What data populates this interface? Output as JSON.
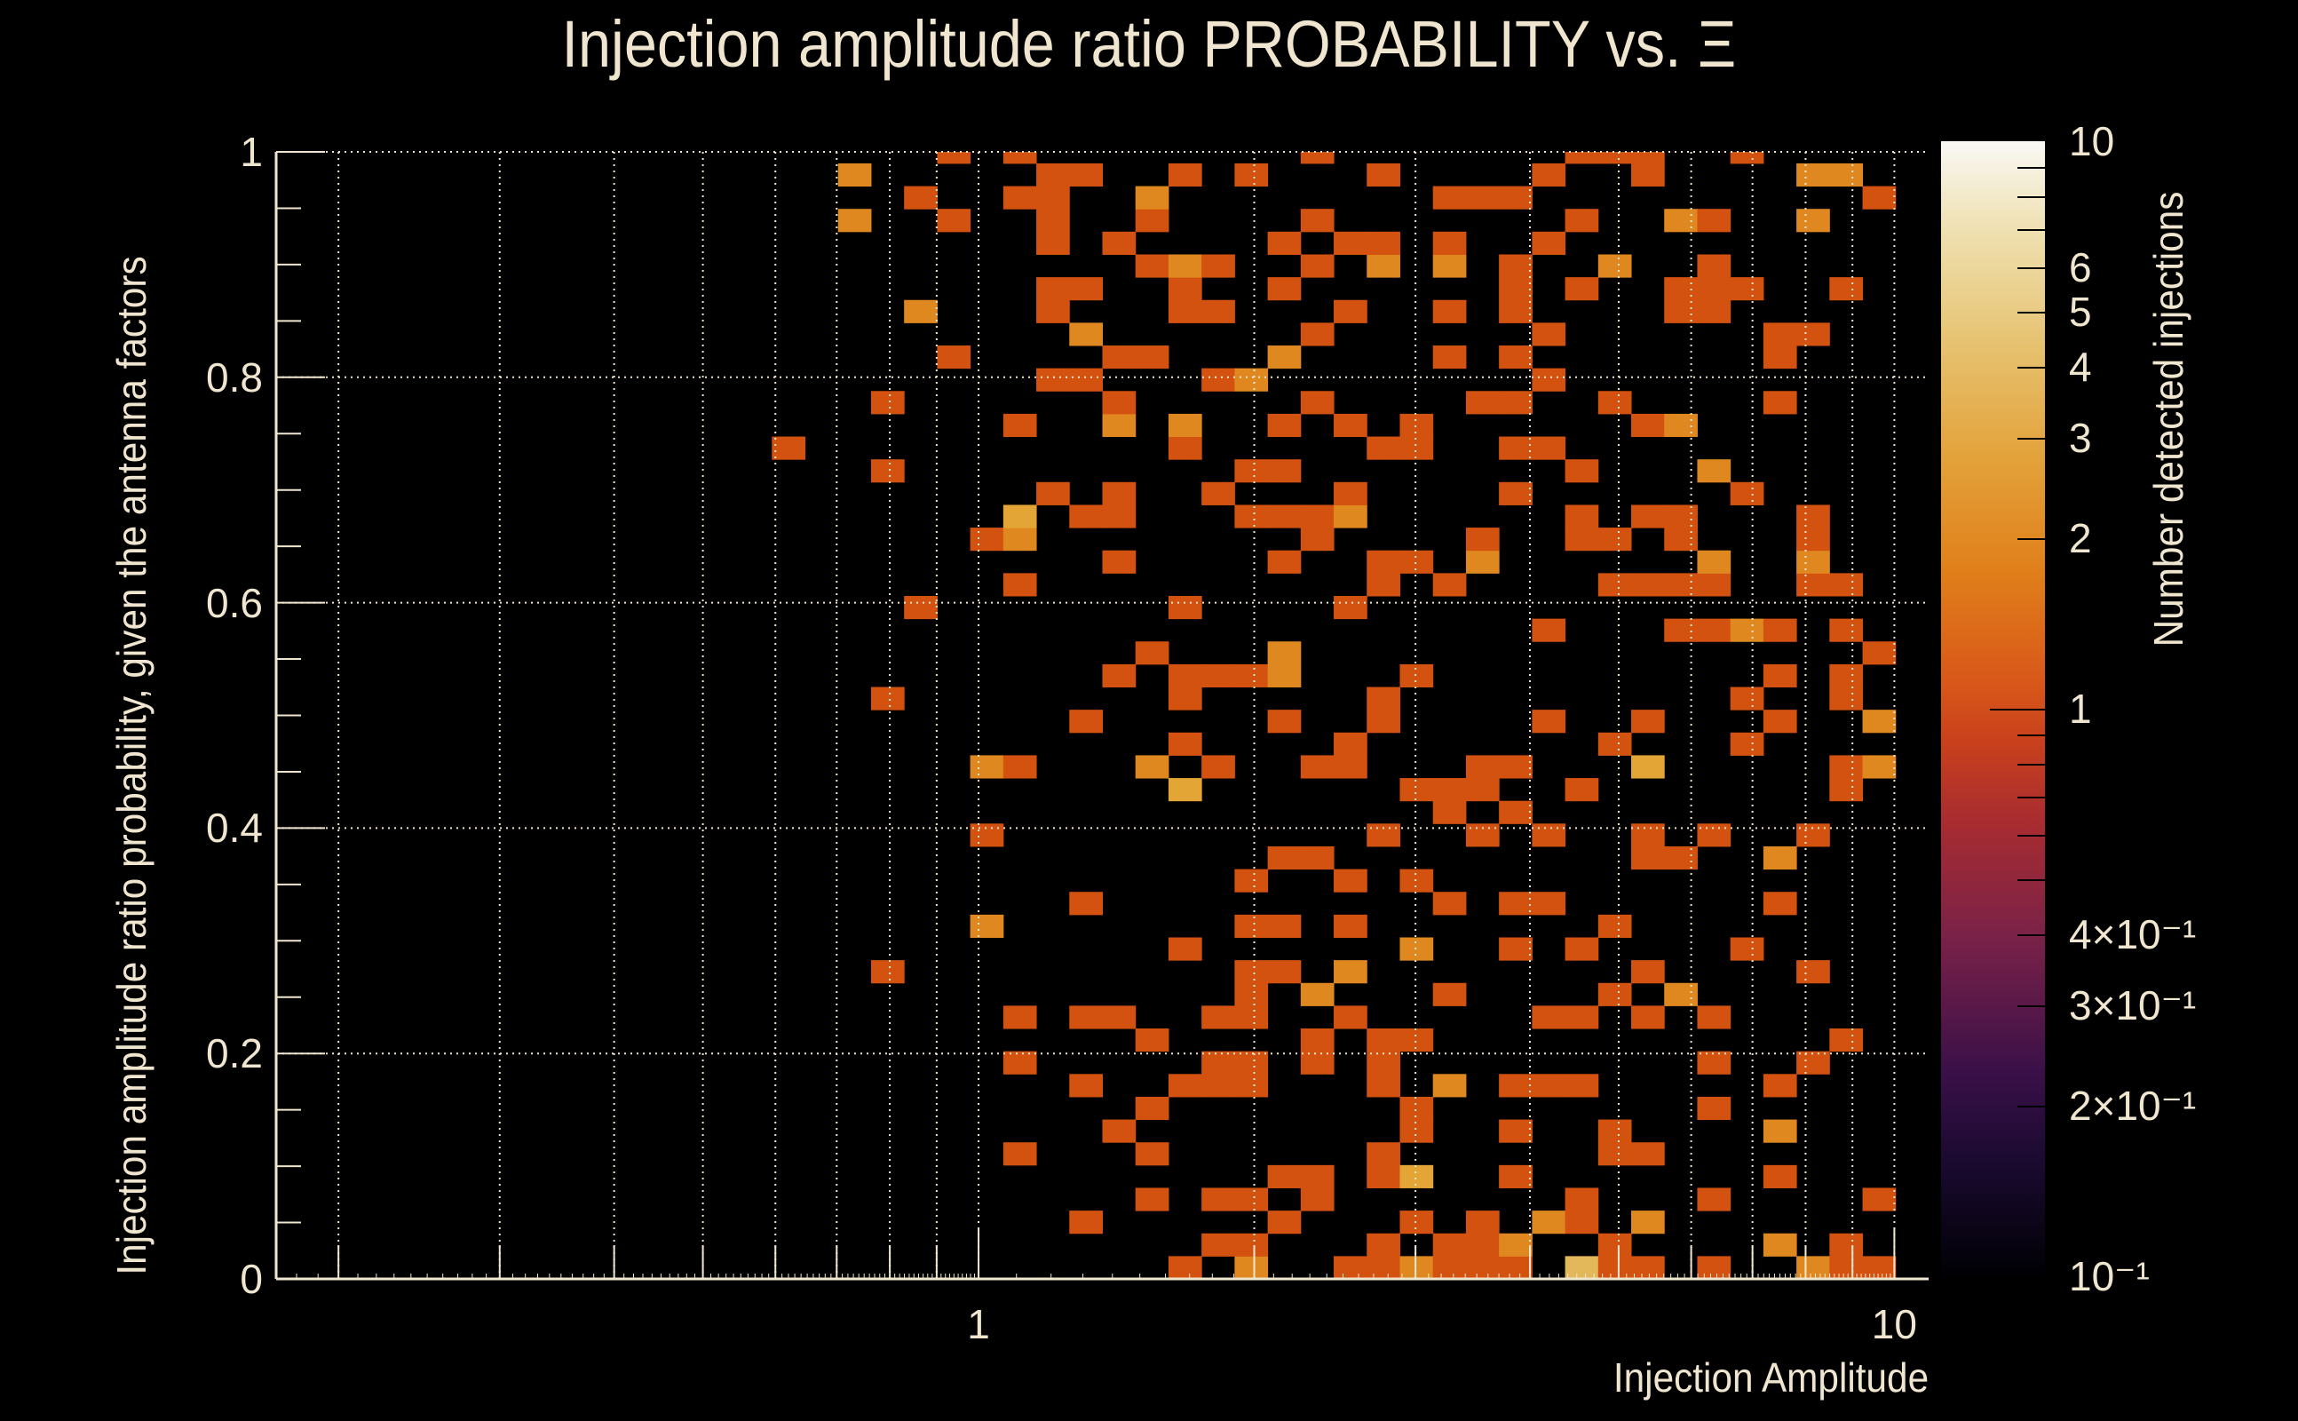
{
  "title": "Injection amplitude ratio PROBABILITY vs. Ξ",
  "chart_data": {
    "type": "heatmap",
    "title": "Injection amplitude ratio PROBABILITY vs. Ξ",
    "xlabel": "Injection Amplitude",
    "ylabel": "Injection amplitude ratio probability, given the antenna factors",
    "zlabel": "Number detected injections",
    "xscale": "log",
    "xlim": [
      0.171,
      10.9
    ],
    "ylim": [
      0,
      1
    ],
    "zscale": "log",
    "zlim": [
      0.1,
      10
    ],
    "x_bins": 50,
    "y_bin_width": 0.0202,
    "x_tick_labels": [
      {
        "value": 1,
        "label": "1"
      },
      {
        "value": 10,
        "label": "10"
      }
    ],
    "y_tick_labels": [
      {
        "value": 0,
        "label": "0"
      },
      {
        "value": 0.2,
        "label": "0.2"
      },
      {
        "value": 0.4,
        "label": "0.4"
      },
      {
        "value": 0.6,
        "label": "0.6"
      },
      {
        "value": 0.8,
        "label": "0.8"
      },
      {
        "value": 1,
        "label": "1"
      }
    ],
    "z_tick_labels": [
      {
        "value": 10,
        "label": "10"
      },
      {
        "value": 6,
        "label": "6"
      },
      {
        "value": 5,
        "label": "5"
      },
      {
        "value": 4,
        "label": "4"
      },
      {
        "value": 3,
        "label": "3"
      },
      {
        "value": 2,
        "label": "2"
      },
      {
        "value": 1,
        "label": "1"
      },
      {
        "value": 0.4,
        "label": "4×10⁻¹"
      },
      {
        "value": 0.3,
        "label": "3×10⁻¹"
      },
      {
        "value": 0.2,
        "label": "2×10⁻¹"
      },
      {
        "value": 0.1,
        "label": "10⁻¹"
      }
    ],
    "grid": true,
    "count_colors": {
      "1": "#d4520f",
      "2": "#e08820",
      "3": "#e3a535",
      "4": "#e3b85a"
    },
    "rows_note": "index = y bin (0 = bottom); entries are x bin indices, ':n' = count n (default 1)",
    "rows": [
      "27 29:2 32 33 34:2 35 36 37 39:4 40 41 43 46:2 47 48",
      "28 29 33 35 36 37:2 40 45:2 47",
      "24 30 34 36 38:2 39 41:2",
      "26 28 29 31 39 43 48",
      "30 31 33 34:3 37 45",
      "22 26 33 40 41",
      "25 34 37 40 45:2",
      "26 34 43",
      "24 27 28 29 33 35:2 37 38 39 45",
      "22 28 29 31 33 43 46",
      "26 31 33 34 47",
      "22 24 25 28 29 32 38 39 41 43",
      "29 31:2 35 40 42:2",
      "18 29 30 32:2 41 46",
      "27 34:2 37 39 44",
      "21:2 29 30 32 40",
      "24 35 37 38 45",
      "29 32 34",
      "30 31 41 42 45:2",
      "21 33 36 38 41 43 46",
      "35 37",
      "27:3 34 35 36 39 47",
      "21:2 22 26:2 28 31 32 36 37 41:3 47 48:2",
      "27 32 40 44",
      "24 30 33 38 41 45 48:2",
      "18 27 33 44 47",
      "25 27 28 29 30:2 34 45 47",
      "26 30:2 48",
      "38 42 43 44:2 45 47",
      "19 27 32",
      "22 33 35 40 41 42 43 46 47",
      "25 30 33 34 36:2 43:2 46:2",
      "21 22:2 31 36 39 40 42 46",
      "22:3 24 25 29 30 31 32:2 39 41 42 46",
      "23 25 28 32 37 44",
      "18 29 30 39 43:2",
      "15 27 33 34 37 38",
      "22 25:2 27:2 30 32 34 41 42:2",
      "18 25 31 36 37 40 45",
      "23 24 28 29:2 38",
      "20 25 26 30:2 35 37 45",
      "24:2 31 38 45 46",
      "19:2 23 27 28 32 35 37 42 43",
      "23 24 27 30 37 39 42 43 44 47",
      "26 27:2 28 31 33:2 35:2 37 40:2 43",
      "23 25 30 32 33 35 38",
      "17:2 20 23 26 31 39 42:2 43 46:2",
      "19 22 23 26:2 35 36 37 48",
      "17:2 23 24 27 29 33 38 41 46:2 47:2",
      "20 22 31 39 40 41 44"
    ]
  }
}
